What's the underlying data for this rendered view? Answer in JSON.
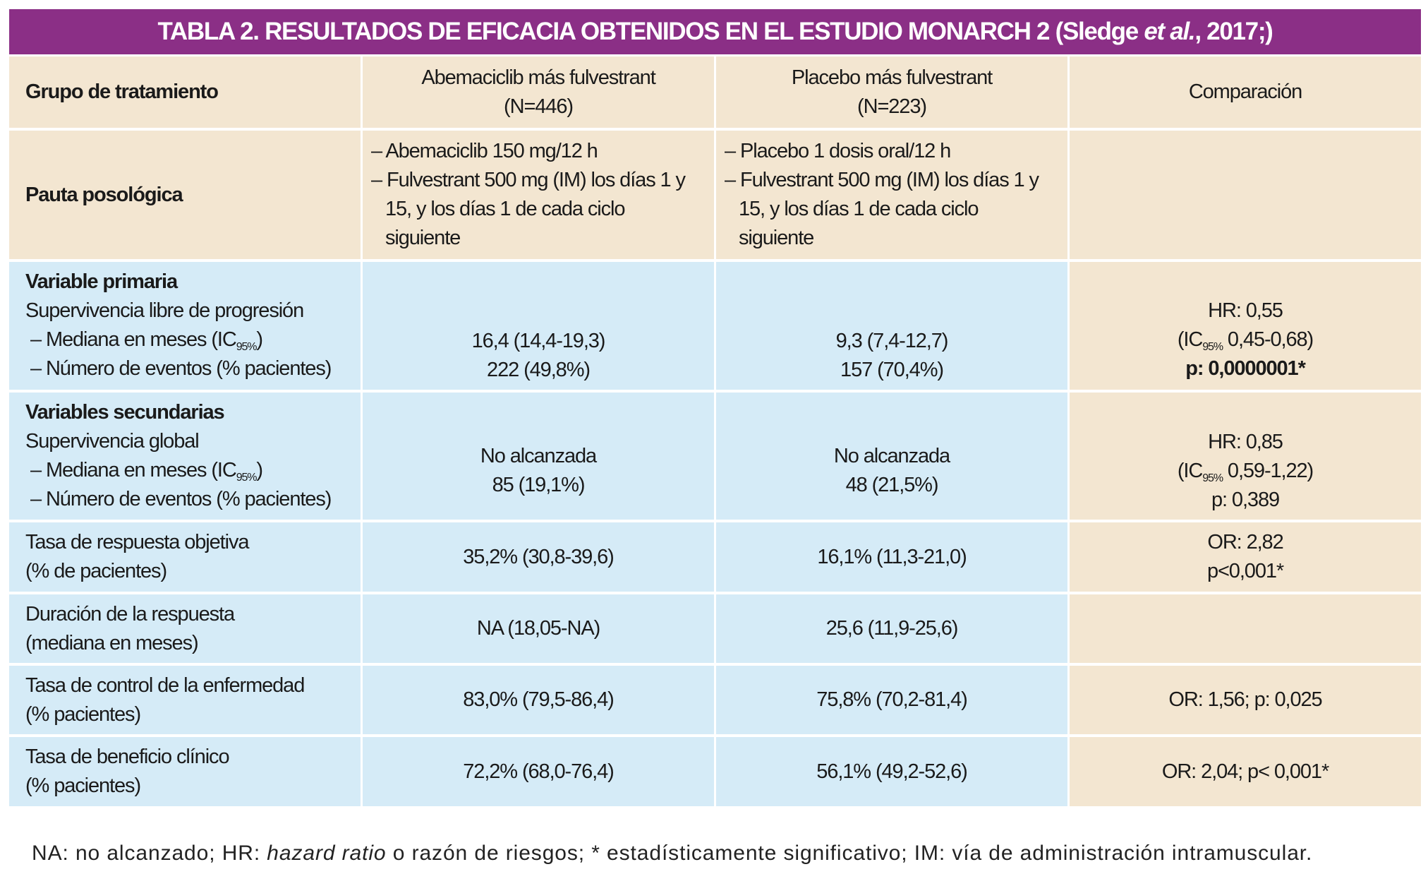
{
  "title": {
    "pre": "TABLA 2. RESULTADOS DE EFICACIA OBTENIDOS EN EL ESTUDIO MONARCH 2 (Sledge ",
    "italic": "et al.",
    "post": ", 2017;)"
  },
  "colors": {
    "title_bg": "#8B2F86",
    "beige": "#F3E6D1",
    "blue": "#D5EBF7"
  },
  "header": {
    "label": "Grupo de tratamiento",
    "col1": [
      "Abemaciclib más fulvestrant",
      "(N=446)"
    ],
    "col2": [
      "Placebo más fulvestrant",
      "(N=223)"
    ],
    "col3": "Comparación"
  },
  "pauta": {
    "label": "Pauta posológica",
    "col1": [
      "– Abemaciclib 150 mg/12 h",
      "– Fulvestrant 500 mg (IM) los días 1 y 15, y los días 1 de cada ciclo siguiente"
    ],
    "col2": [
      "– Placebo 1 dosis oral/12 h",
      "– Fulvestrant 500 mg (IM) los días 1 y 15, y los días 1 de cada ciclo siguiente"
    ]
  },
  "primary": {
    "heading": "Variable primaria",
    "line1": "Supervivencia libre de progresión",
    "line2": " – Mediana en meses (IC",
    "line2_sub": "95%",
    "line2_post": ")",
    "line3": " – Número de eventos (% pacientes)",
    "col1": [
      "16,4 (14,4-19,3)",
      "222 (49,8%)"
    ],
    "col2": [
      "9,3 (7,4-12,7)",
      "157 (70,4%)"
    ],
    "comp": {
      "hr": "HR: 0,55",
      "ic_pre": "(IC",
      "ic_sub": "95%",
      "ic_post": " 0,45-0,68)",
      "p": "p: 0,0000001*"
    }
  },
  "secondary": {
    "heading": "Variables secundarias",
    "line1": "Supervivencia global",
    "line2": " – Mediana en meses (IC",
    "line2_sub": "95%",
    "line2_post": ")",
    "line3": " – Número de eventos (% pacientes)",
    "col1": [
      "No alcanzada",
      "85 (19,1%)"
    ],
    "col2": [
      "No alcanzada",
      "48 (21,5%)"
    ],
    "comp": {
      "hr": "HR: 0,85",
      "ic_pre": "(IC",
      "ic_sub": "95%",
      "ic_post": " 0,59-1,22)",
      "p": "p: 0,389"
    }
  },
  "rows": [
    {
      "label": [
        "Tasa de respuesta objetiva",
        "(% de pacientes)"
      ],
      "col1": "35,2% (30,8-39,6)",
      "col2": "16,1% (11,3-21,0)",
      "comp": [
        "OR: 2,82",
        "p<0,001*"
      ]
    },
    {
      "label": [
        "Duración de la respuesta",
        "(mediana en meses)"
      ],
      "col1": "NA (18,05-NA)",
      "col2": "25,6 (11,9-25,6)",
      "comp": []
    },
    {
      "label": [
        "Tasa de control de la enfermedad",
        "(% pacientes)"
      ],
      "col1": "83,0% (79,5-86,4)",
      "col2": "75,8% (70,2-81,4)",
      "comp": [
        "OR: 1,56; p: 0,025"
      ]
    },
    {
      "label": [
        "Tasa de beneficio clínico",
        "(% pacientes)"
      ],
      "col1": "72,2% (68,0-76,4)",
      "col2": "56,1% (49,2-52,6)",
      "comp": [
        "OR: 2,04; p< 0,001*"
      ]
    }
  ],
  "footnote": {
    "pre": "NA: no alcanzado; HR: ",
    "italic": "hazard ratio",
    "post": " o razón de riesgos; * estadísticamente significativo; IM: vía de administración intramuscular."
  }
}
